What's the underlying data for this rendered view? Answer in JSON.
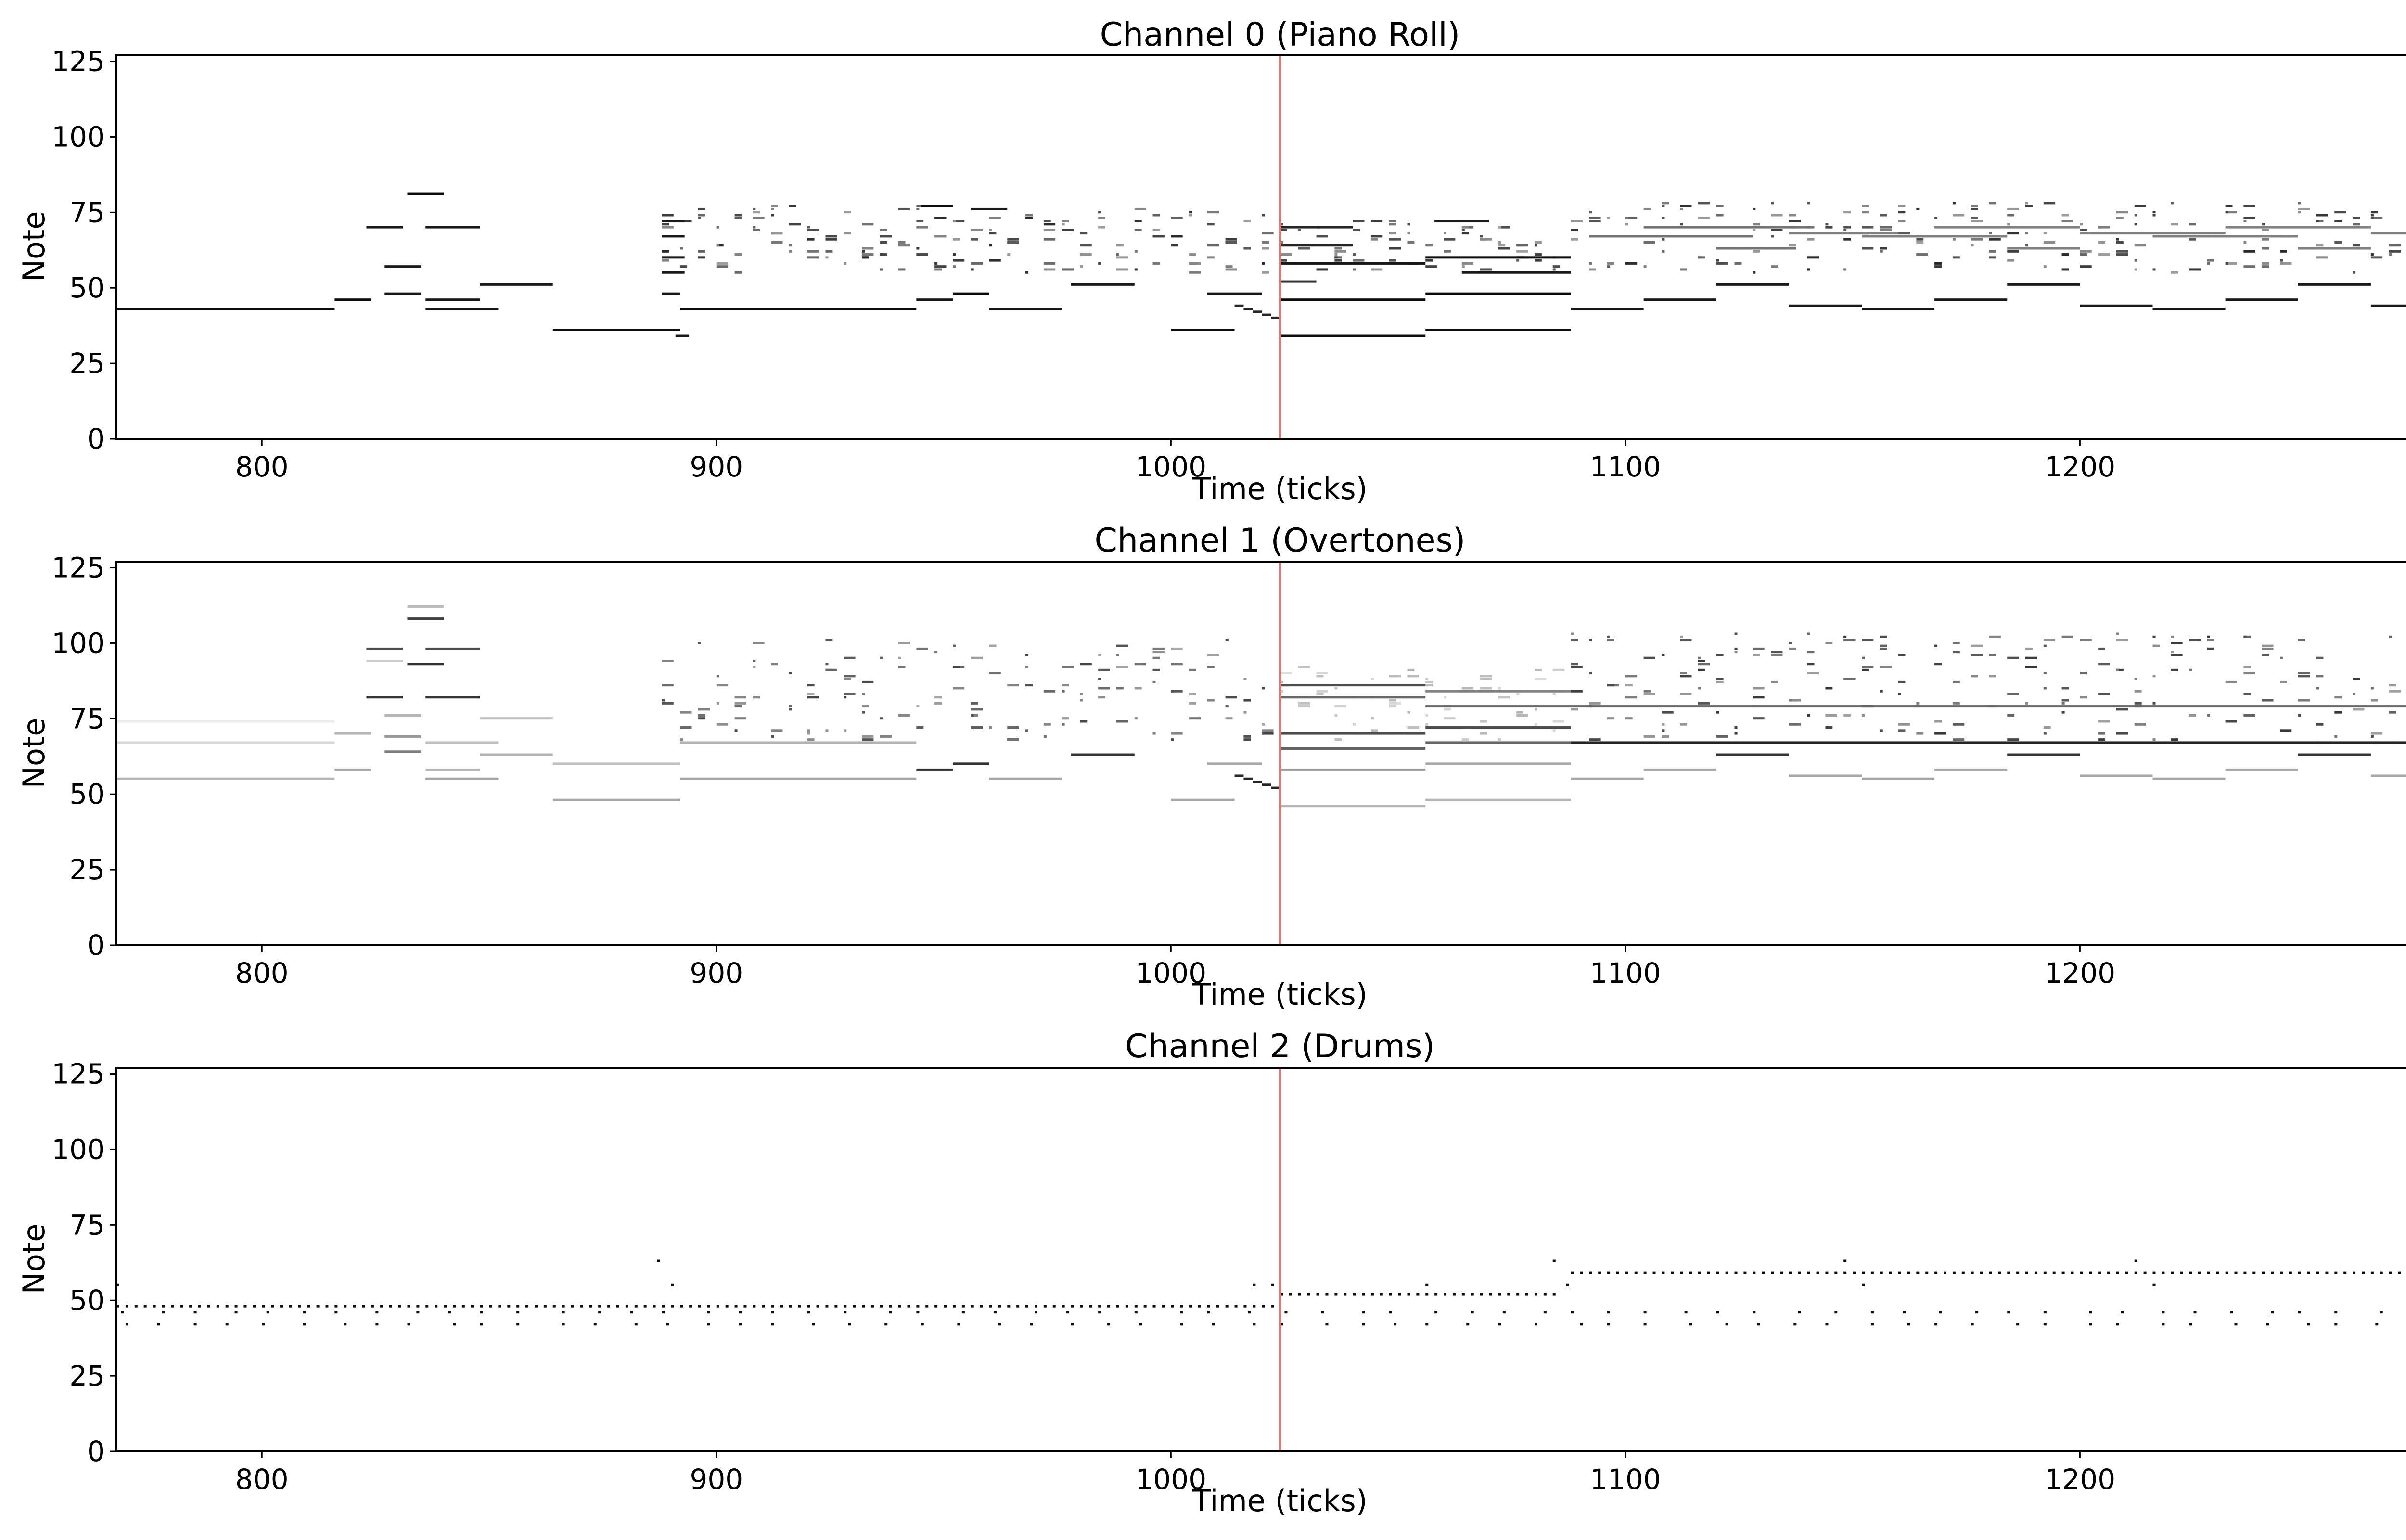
{
  "chart_data": [
    {
      "type": "heatmap",
      "title": "Channel 0 (Piano Roll)",
      "xlabel": "Time (ticks)",
      "ylabel": "Note",
      "xlim": [
        768,
        1280
      ],
      "ylim": [
        0,
        127
      ],
      "xticks": [
        800,
        900,
        1000,
        1100,
        1200
      ],
      "yticks": [
        0,
        25,
        50,
        75,
        100,
        125
      ],
      "playhead": 1024,
      "playhead_color": "#ff6b6b",
      "notes": [
        [
          768,
          816,
          43,
          0.95
        ],
        [
          816,
          824,
          46,
          0.95
        ],
        [
          823,
          831,
          70,
          0.9
        ],
        [
          827,
          835,
          57,
          0.9
        ],
        [
          827,
          835,
          48,
          0.9
        ],
        [
          832,
          840,
          81,
          0.95
        ],
        [
          836,
          852,
          43,
          0.9
        ],
        [
          836,
          848,
          46,
          0.9
        ],
        [
          836,
          848,
          70,
          0.9
        ],
        [
          848,
          864,
          51,
          0.9
        ],
        [
          864,
          892,
          36,
          0.95
        ],
        [
          888,
          893,
          72,
          0.9
        ],
        [
          888,
          893,
          67,
          0.9
        ],
        [
          888,
          893,
          60,
          0.9
        ],
        [
          888,
          893,
          55,
          0.9
        ],
        [
          888,
          892,
          48,
          0.9
        ],
        [
          891,
          894,
          34,
          0.9
        ],
        [
          892,
          944,
          43,
          0.95
        ],
        [
          945,
          952,
          77,
          0.95
        ],
        [
          944,
          952,
          46,
          0.9
        ],
        [
          952,
          960,
          48,
          0.95
        ],
        [
          956,
          964,
          76,
          0.9
        ],
        [
          960,
          976,
          43,
          0.9
        ],
        [
          978,
          992,
          51,
          0.9
        ],
        [
          1000,
          1014,
          36,
          0.95
        ],
        [
          1008,
          1020,
          48,
          0.9
        ],
        [
          1024,
          1056,
          34,
          0.95
        ],
        [
          1024,
          1056,
          46,
          0.95
        ],
        [
          1024,
          1056,
          58,
          0.9
        ],
        [
          1024,
          1040,
          64,
          0.85
        ],
        [
          1024,
          1040,
          70,
          0.85
        ],
        [
          1024,
          1032,
          52,
          0.8
        ],
        [
          1056,
          1088,
          36,
          0.95
        ],
        [
          1056,
          1088,
          48,
          0.95
        ],
        [
          1056,
          1088,
          60,
          0.95
        ],
        [
          1058,
          1070,
          72,
          0.9
        ],
        [
          1064,
          1088,
          55,
          0.9
        ],
        [
          1088,
          1104,
          43,
          0.9
        ],
        [
          1092,
          1128,
          67,
          0.55
        ],
        [
          1104,
          1120,
          46,
          0.9
        ],
        [
          1104,
          1140,
          70,
          0.55
        ],
        [
          1120,
          1136,
          63,
          0.55
        ],
        [
          1120,
          1136,
          51,
          0.9
        ],
        [
          1136,
          1152,
          44,
          0.9
        ],
        [
          1136,
          1160,
          68,
          0.5
        ],
        [
          1152,
          1168,
          43,
          0.9
        ],
        [
          1152,
          1184,
          67,
          0.5
        ],
        [
          1168,
          1184,
          46,
          0.9
        ],
        [
          1168,
          1200,
          70,
          0.5
        ],
        [
          1184,
          1200,
          63,
          0.5
        ],
        [
          1184,
          1200,
          51,
          0.9
        ],
        [
          1200,
          1216,
          44,
          0.9
        ],
        [
          1200,
          1232,
          68,
          0.5
        ],
        [
          1216,
          1232,
          43,
          0.9
        ],
        [
          1216,
          1248,
          67,
          0.5
        ],
        [
          1232,
          1248,
          46,
          0.9
        ],
        [
          1232,
          1264,
          70,
          0.5
        ],
        [
          1248,
          1264,
          63,
          0.5
        ],
        [
          1248,
          1264,
          51,
          0.9
        ],
        [
          1264,
          1280,
          44,
          0.9
        ],
        [
          1264,
          1280,
          68,
          0.5
        ]
      ],
      "clusters": [
        [
          888,
          1022,
          55,
          77,
          0.85
        ],
        [
          1024,
          1088,
          56,
          72,
          0.8
        ],
        [
          1088,
          1280,
          55,
          79,
          0.85
        ]
      ],
      "notes_curve": [
        [
          1014,
          44
        ],
        [
          1016,
          43
        ],
        [
          1018,
          42
        ],
        [
          1020,
          41
        ],
        [
          1022,
          40
        ]
      ]
    },
    {
      "type": "heatmap",
      "title": "Channel 1 (Overtones)",
      "xlabel": "Time (ticks)",
      "ylabel": "Note",
      "xlim": [
        768,
        1280
      ],
      "ylim": [
        0,
        127
      ],
      "xticks": [
        800,
        900,
        1000,
        1100,
        1200
      ],
      "yticks": [
        0,
        25,
        50,
        75,
        100,
        125
      ],
      "playhead": 1024,
      "playhead_color": "#ff6b6b",
      "notes": [
        [
          768,
          816,
          55,
          0.3
        ],
        [
          768,
          816,
          67,
          0.15
        ],
        [
          768,
          816,
          74,
          0.08
        ],
        [
          816,
          824,
          58,
          0.35
        ],
        [
          816,
          824,
          70,
          0.3
        ],
        [
          823,
          831,
          82,
          0.8
        ],
        [
          823,
          831,
          94,
          0.2
        ],
        [
          823,
          831,
          98,
          0.7
        ],
        [
          827,
          835,
          64,
          0.5
        ],
        [
          827,
          835,
          69,
          0.4
        ],
        [
          827,
          835,
          76,
          0.3
        ],
        [
          832,
          840,
          93,
          0.8
        ],
        [
          832,
          840,
          108,
          0.75
        ],
        [
          832,
          840,
          112,
          0.25
        ],
        [
          836,
          852,
          55,
          0.35
        ],
        [
          836,
          852,
          67,
          0.25
        ],
        [
          836,
          848,
          58,
          0.3
        ],
        [
          836,
          848,
          82,
          0.8
        ],
        [
          836,
          848,
          98,
          0.7
        ],
        [
          848,
          864,
          63,
          0.3
        ],
        [
          848,
          864,
          75,
          0.25
        ],
        [
          864,
          892,
          48,
          0.35
        ],
        [
          864,
          892,
          60,
          0.25
        ],
        [
          892,
          944,
          55,
          0.35
        ],
        [
          892,
          944,
          67,
          0.3
        ],
        [
          944,
          952,
          58,
          0.8
        ],
        [
          952,
          960,
          60,
          0.8
        ],
        [
          960,
          976,
          55,
          0.35
        ],
        [
          978,
          992,
          63,
          0.8
        ],
        [
          1000,
          1014,
          48,
          0.35
        ],
        [
          1008,
          1020,
          60,
          0.35
        ],
        [
          1024,
          1056,
          46,
          0.3
        ],
        [
          1024,
          1056,
          58,
          0.4
        ],
        [
          1024,
          1056,
          65,
          0.6
        ],
        [
          1024,
          1056,
          70,
          0.7
        ],
        [
          1024,
          1056,
          82,
          0.6
        ],
        [
          1024,
          1056,
          86,
          0.7
        ],
        [
          1056,
          1088,
          48,
          0.3
        ],
        [
          1056,
          1088,
          60,
          0.35
        ],
        [
          1056,
          1088,
          67,
          0.6
        ],
        [
          1056,
          1088,
          72,
          0.7
        ],
        [
          1056,
          1088,
          79,
          0.6
        ],
        [
          1056,
          1088,
          84,
          0.5
        ],
        [
          1088,
          1104,
          55,
          0.35
        ],
        [
          1104,
          1120,
          58,
          0.35
        ],
        [
          1120,
          1136,
          63,
          0.8
        ],
        [
          1136,
          1152,
          56,
          0.35
        ],
        [
          1152,
          1168,
          55,
          0.35
        ],
        [
          1168,
          1184,
          58,
          0.35
        ],
        [
          1184,
          1200,
          63,
          0.8
        ],
        [
          1200,
          1216,
          56,
          0.35
        ],
        [
          1216,
          1232,
          55,
          0.35
        ],
        [
          1232,
          1248,
          58,
          0.35
        ],
        [
          1248,
          1264,
          63,
          0.8
        ],
        [
          1264,
          1280,
          56,
          0.35
        ],
        [
          1088,
          1280,
          67,
          0.85
        ],
        [
          1088,
          1280,
          79,
          0.6
        ]
      ],
      "clusters": [
        [
          888,
          1022,
          67,
          101,
          0.75
        ],
        [
          1024,
          1088,
          68,
          95,
          0.3
        ],
        [
          1088,
          1280,
          67,
          103,
          0.8
        ]
      ],
      "notes_curve": [
        [
          1014,
          56
        ],
        [
          1016,
          55
        ],
        [
          1018,
          54
        ],
        [
          1020,
          53
        ],
        [
          1022,
          52
        ]
      ]
    },
    {
      "type": "heatmap",
      "title": "Channel 2 (Drums)",
      "xlabel": "Time (ticks)",
      "ylabel": "Note",
      "xlim": [
        768,
        1280
      ],
      "ylim": [
        0,
        127
      ],
      "xticks": [
        800,
        900,
        1000,
        1100,
        1200
      ],
      "yticks": [
        0,
        25,
        50,
        75,
        100,
        125
      ],
      "playhead": 1024,
      "playhead_color": "#ff6b6b",
      "rows": [
        [
          768,
          1024,
          48,
          2,
          0.95
        ],
        [
          768,
          1024,
          46,
          8,
          0.95
        ],
        [
          768,
          1024,
          42,
          8,
          0.95
        ],
        [
          1024,
          1086,
          52,
          2,
          0.95
        ],
        [
          1024,
          1086,
          46,
          8,
          0.95
        ],
        [
          1024,
          1086,
          42,
          8,
          0.95
        ],
        [
          1088,
          1280,
          59,
          2,
          0.95
        ],
        [
          1088,
          1280,
          46,
          8,
          0.95
        ],
        [
          1088,
          1280,
          42,
          8,
          0.95
        ]
      ],
      "hits": [
        [
          768,
          55
        ],
        [
          887,
          63
        ],
        [
          890,
          55
        ],
        [
          1018,
          55
        ],
        [
          1022,
          55
        ],
        [
          1056,
          55
        ],
        [
          1084,
          63
        ],
        [
          1087,
          55
        ],
        [
          1148,
          63
        ],
        [
          1152,
          55
        ],
        [
          1212,
          63
        ],
        [
          1216,
          55
        ]
      ]
    }
  ]
}
